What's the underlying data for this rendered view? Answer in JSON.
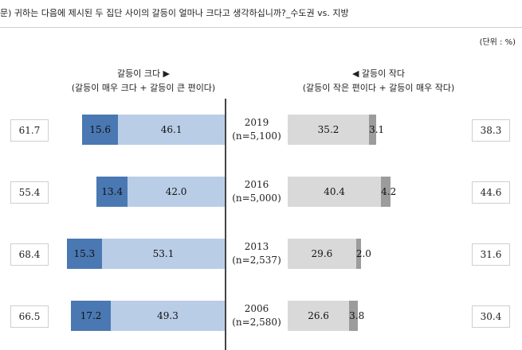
{
  "question": "문) 귀하는 다음에 제시된 두 집단 사이의 갈등이 얼마나 크다고 생각하십니까?_수도권 vs. 지방",
  "unit": "(단위 : %)",
  "header_left": {
    "line1": "갈등이 크다 ▶",
    "line2": "(갈등이 매우 크다 + 갈등이 큰 편이다)"
  },
  "header_right": {
    "line1": "◀ 갈등이 작다",
    "line2": "(갈등이 작은 편이다 + 갈등이 매우 작다)"
  },
  "colors": {
    "very_big": "#4a78b2",
    "big": "#b9cde6",
    "small": "#d9d9d9",
    "very_small": "#9c9c9c"
  },
  "chart_data": {
    "type": "bar",
    "orientation": "diverging-horizontal",
    "categories": [
      "2019",
      "2016",
      "2013",
      "2006"
    ],
    "samples": [
      "(n=5,100)",
      "(n=5,000)",
      "(n=2,537)",
      "(n=2,580)"
    ],
    "series": [
      {
        "name": "갈등이 매우 크다",
        "values": [
          15.6,
          13.4,
          15.3,
          17.2
        ]
      },
      {
        "name": "갈등이 큰 편이다",
        "values": [
          46.1,
          42.0,
          53.1,
          49.3
        ]
      },
      {
        "name": "갈등이 작은 편이다",
        "values": [
          35.2,
          40.4,
          29.6,
          26.6
        ]
      },
      {
        "name": "갈등이 매우 작다",
        "values": [
          3.1,
          4.2,
          2.0,
          3.8
        ]
      }
    ],
    "totals_big": [
      61.7,
      55.4,
      68.4,
      66.5
    ],
    "totals_small": [
      38.3,
      44.6,
      31.6,
      30.4
    ],
    "labels": {
      "very_big": [
        "15.6",
        "13.4",
        "15.3",
        "17.2"
      ],
      "big": [
        "46.1",
        "42.0",
        "53.1",
        "49.3"
      ],
      "small": [
        "35.2",
        "40.4",
        "29.6",
        "26.6"
      ],
      "very_small": [
        "3.1",
        "4.2",
        "2.0",
        "3.8"
      ],
      "totals_big": [
        "61.7",
        "55.4",
        "68.4",
        "66.5"
      ],
      "totals_small": [
        "38.3",
        "44.6",
        "31.6",
        "30.4"
      ]
    }
  }
}
